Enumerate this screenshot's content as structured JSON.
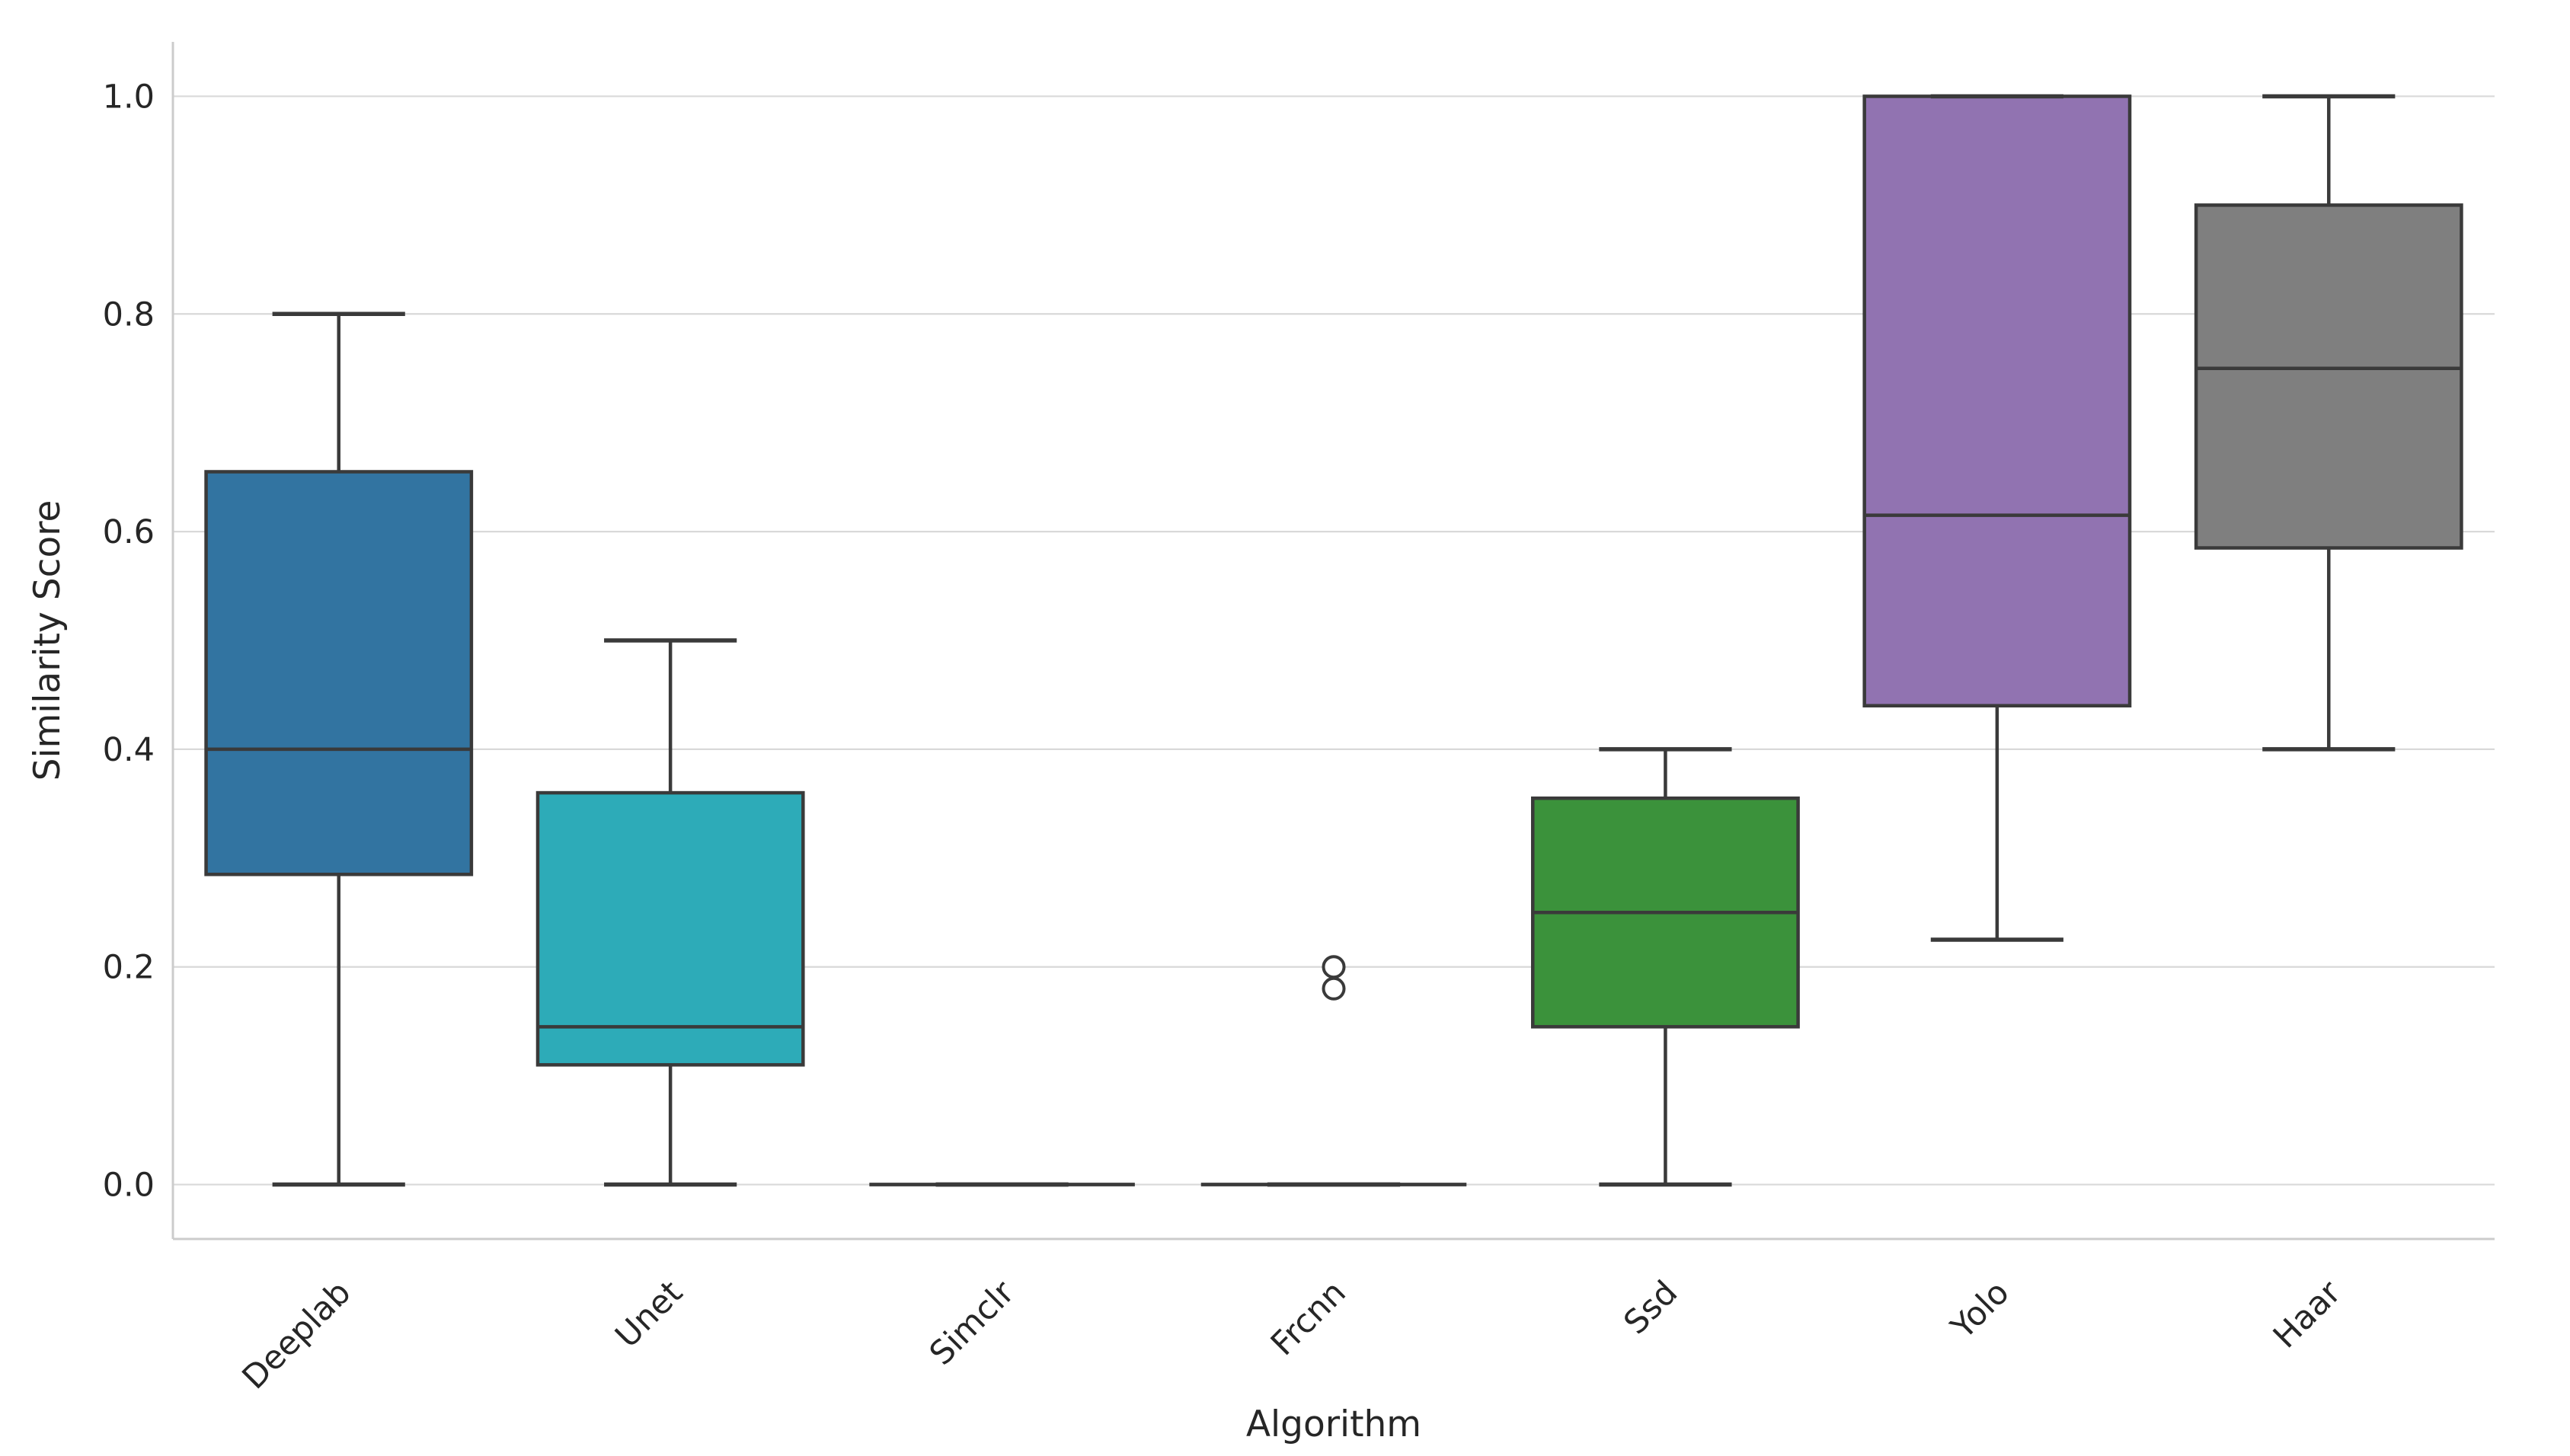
{
  "chart_data": {
    "type": "boxplot",
    "xlabel": "Algorithm",
    "ylabel": "Similarity Score",
    "categories": [
      "Deeplab",
      "Unet",
      "Simclr",
      "Frcnn",
      "Ssd",
      "Yolo",
      "Haar"
    ],
    "y_ticks": [
      "0.0",
      "0.2",
      "0.4",
      "0.6",
      "0.8",
      "1.0"
    ],
    "y_tick_values": [
      0.0,
      0.2,
      0.4,
      0.6,
      0.8,
      1.0
    ],
    "ylim": [
      -0.05,
      1.05
    ],
    "grid": "horizontal-only",
    "legend": "none",
    "series": [
      {
        "label": "Deeplab",
        "color": "#3274a1",
        "whisker_low": 0.0,
        "q1": 0.285,
        "median": 0.4,
        "q3": 0.655,
        "whisker_high": 0.8,
        "outliers": []
      },
      {
        "label": "Unet",
        "color": "#2dabb8",
        "whisker_low": 0.0,
        "q1": 0.11,
        "median": 0.145,
        "q3": 0.36,
        "whisker_high": 0.5,
        "outliers": []
      },
      {
        "label": "Simclr",
        "color": "#3a3a3a",
        "whisker_low": 0.0,
        "q1": 0.0,
        "median": 0.0,
        "q3": 0.0,
        "whisker_high": 0.0,
        "outliers": []
      },
      {
        "label": "Frcnn",
        "color": "#3a3a3a",
        "whisker_low": 0.0,
        "q1": 0.0,
        "median": 0.0,
        "q3": 0.0,
        "whisker_high": 0.0,
        "outliers": [
          0.2,
          0.18
        ]
      },
      {
        "label": "Ssd",
        "color": "#3b923b",
        "whisker_low": 0.0,
        "q1": 0.145,
        "median": 0.25,
        "q3": 0.355,
        "whisker_high": 0.4,
        "outliers": []
      },
      {
        "label": "Yolo",
        "color": "#9173b1",
        "whisker_low": 0.225,
        "q1": 0.44,
        "median": 0.615,
        "q3": 1.0,
        "whisker_high": 1.0,
        "outliers": []
      },
      {
        "label": "Haar",
        "color": "#7f7f7f",
        "whisker_low": 0.4,
        "q1": 0.585,
        "median": 0.75,
        "q3": 0.9,
        "whisker_high": 1.0,
        "outliers": []
      }
    ],
    "style_colors": {
      "background": "#ffffff",
      "grid_line": "#d9d9d9",
      "spine": "#cccccc",
      "box_edge": "#3a3a3a",
      "text": "#262626",
      "outlier_fill": "#ffffff"
    }
  }
}
